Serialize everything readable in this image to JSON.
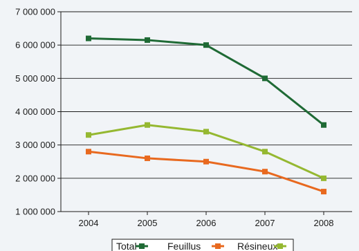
{
  "chart_data": {
    "type": "line",
    "title": "",
    "xlabel": "",
    "ylabel": "",
    "categories": [
      "2004",
      "2005",
      "2006",
      "2007",
      "2008"
    ],
    "ylim": [
      1000000,
      7000000
    ],
    "yticks": [
      1000000,
      2000000,
      3000000,
      4000000,
      5000000,
      6000000,
      7000000
    ],
    "ytick_labels": [
      "1 000 000",
      "2 000 000",
      "3 000 000",
      "4 000 000",
      "5 000 000",
      "6 000 000",
      "7 000 000"
    ],
    "grid": "horizontal",
    "legend_position": "bottom",
    "series": [
      {
        "name": "Total",
        "color": "#1f6a35",
        "values": [
          6200000,
          6150000,
          6000000,
          5000000,
          3600000
        ]
      },
      {
        "name": "Feuillus",
        "color": "#e8691f",
        "values": [
          2800000,
          2600000,
          2500000,
          2200000,
          1600000
        ]
      },
      {
        "name": "Résineux",
        "color": "#95b831",
        "values": [
          3300000,
          3600000,
          3400000,
          2800000,
          2000000
        ]
      }
    ]
  }
}
